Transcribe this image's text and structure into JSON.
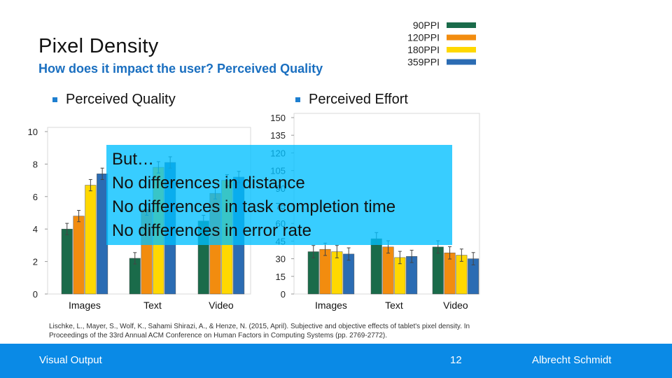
{
  "slide": {
    "title": "Pixel Density",
    "subtitle": "How does it impact the user? Perceived Quality",
    "bullets": [
      "Perceived Quality",
      "Perceived Effort"
    ]
  },
  "overlay": {
    "lines": [
      "But…",
      "No differences in distance",
      "No differences in task completion time",
      "No differences in error rate"
    ]
  },
  "citation": {
    "text": "Lischke, L., Mayer, S., Wolf, K., Sahami Shirazi, A., & Henze, N. (2015, April). Subjective and objective effects of tablet's pixel density. In Proceedings of the 33rd Annual ACM Conference on Human Factors in Computing Systems (pp. 2769-2772)."
  },
  "footer": {
    "left": "Visual Output",
    "page": "12",
    "author": "Albrecht Schmidt"
  },
  "colors": {
    "series": [
      "#1a6b4a",
      "#f28c0f",
      "#ffd800",
      "#2b6cb3"
    ],
    "accent": "#1a6fc0",
    "footer": "#0a8ae6",
    "overlay": "#00bfff"
  },
  "chart_data": [
    {
      "type": "bar",
      "categories": [
        "Images",
        "Text",
        "Video"
      ],
      "series": [
        {
          "name": "90PPI",
          "values": [
            4.0,
            2.2,
            4.5
          ]
        },
        {
          "name": "120PPI",
          "values": [
            4.8,
            5.2,
            6.2
          ]
        },
        {
          "name": "180PPI",
          "values": [
            6.7,
            7.8,
            7.0
          ]
        },
        {
          "name": "359PPI",
          "values": [
            7.4,
            8.1,
            7.2
          ]
        }
      ],
      "ylim": [
        0,
        10
      ],
      "yticks": [
        0,
        2,
        4,
        6,
        8,
        10
      ],
      "legend": "top-right"
    },
    {
      "type": "bar",
      "categories": [
        "Images",
        "Text",
        "Video"
      ],
      "series": [
        {
          "name": "90PPI",
          "values": [
            36,
            47,
            40
          ]
        },
        {
          "name": "120PPI",
          "values": [
            38,
            40,
            35
          ]
        },
        {
          "name": "180PPI",
          "values": [
            36,
            31,
            33
          ]
        },
        {
          "name": "359PPI",
          "values": [
            34,
            32,
            30
          ]
        }
      ],
      "ylim": [
        0,
        150
      ],
      "yticks": [
        0,
        15,
        30,
        45,
        60,
        75,
        90,
        105,
        120,
        135,
        150
      ],
      "legend": "top-right"
    }
  ]
}
